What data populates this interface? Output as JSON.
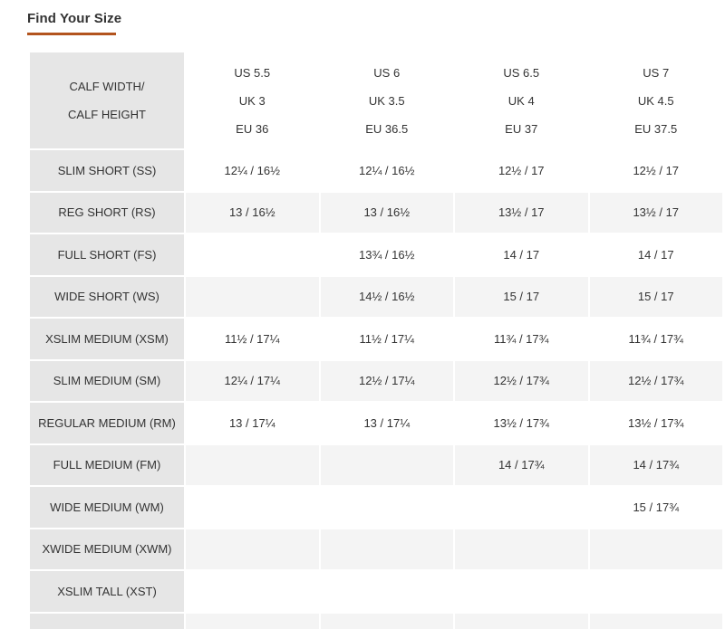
{
  "title": "Find Your Size",
  "accent_color": "#b3541e",
  "table": {
    "corner": [
      "CALF WIDTH/",
      "CALF HEIGHT"
    ],
    "sizes": [
      {
        "us": "US 5.5",
        "uk": "UK 3",
        "eu": "EU 36"
      },
      {
        "us": "US 6",
        "uk": "UK 3.5",
        "eu": "EU 36.5"
      },
      {
        "us": "US 6.5",
        "uk": "UK 4",
        "eu": "EU 37"
      },
      {
        "us": "US 7",
        "uk": "UK 4.5",
        "eu": "EU 37.5"
      }
    ],
    "rows": [
      {
        "label": "SLIM SHORT (SS)",
        "values": [
          "12¼ / 16½",
          "12¼ / 16½",
          "12½ / 17",
          "12½ / 17"
        ]
      },
      {
        "label": "REG SHORT (RS)",
        "values": [
          "13 / 16½",
          "13 / 16½",
          "13½ / 17",
          "13½ / 17"
        ]
      },
      {
        "label": "FULL SHORT (FS)",
        "values": [
          "",
          "13¾ / 16½",
          "14 / 17",
          "14 / 17"
        ]
      },
      {
        "label": "WIDE SHORT (WS)",
        "values": [
          "",
          "14½ / 16½",
          "15 / 17",
          "15 / 17"
        ]
      },
      {
        "label": "XSLIM MEDIUM (XSM)",
        "values": [
          "11½ / 17¼",
          "11½ / 17¼",
          "11¾ / 17¾",
          "11¾ / 17¾"
        ]
      },
      {
        "label": "SLIM MEDIUM (SM)",
        "values": [
          "12¼ / 17¼",
          "12½ / 17¼",
          "12½ / 17¾",
          "12½ / 17¾"
        ]
      },
      {
        "label": "REGULAR MEDIUM (RM)",
        "values": [
          "13 / 17¼",
          "13 / 17¼",
          "13½ / 17¾",
          "13½ / 17¾"
        ]
      },
      {
        "label": "FULL MEDIUM (FM)",
        "values": [
          "",
          "",
          "14 / 17¾",
          "14 / 17¾"
        ]
      },
      {
        "label": "WIDE MEDIUM (WM)",
        "values": [
          "",
          "",
          "",
          "15 / 17¾"
        ]
      },
      {
        "label": "XWIDE MEDIUM (XWM)",
        "values": [
          "",
          "",
          "",
          ""
        ]
      },
      {
        "label": "XSLIM TALL (XST)",
        "values": [
          "",
          "",
          "",
          ""
        ]
      },
      {
        "label": "",
        "values": [
          "",
          "",
          "",
          ""
        ]
      }
    ]
  }
}
